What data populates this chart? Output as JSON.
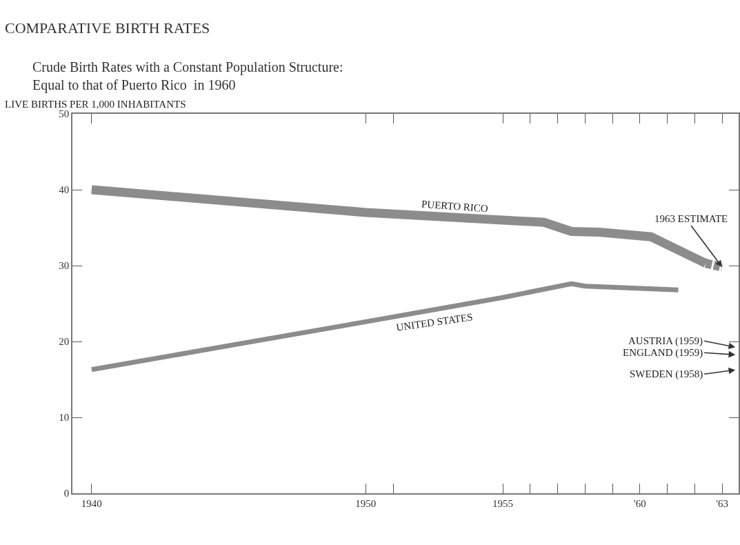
{
  "chart_data": {
    "type": "line",
    "title": "COMPARATIVE BIRTH RATES",
    "subtitle": "Crude Birth Rates with a Constant Population Structure:\nEqual to that of Puerto Rico  in 1960",
    "ylabel": "LIVE BIRTHS PER 1,000 INHABITANTS",
    "series": [
      {
        "name": "PUERTO RICO",
        "color": "#8c8c8c",
        "x": [
          1940,
          1950,
          1956.5,
          1957.5,
          1958.5,
          1960.4,
          1962.4
        ],
        "values": [
          40.0,
          37.0,
          35.7,
          34.5,
          34.4,
          33.8,
          30.3
        ]
      },
      {
        "color": "#8c8c8c",
        "x": [
          1962.4,
          1963
        ],
        "values": [
          30.3,
          29.8
        ],
        "line_style": "dashed"
      },
      {
        "name": "UNITED STATES",
        "color": "#8c8c8c",
        "x": [
          1940,
          1950,
          1955,
          1957.5,
          1958,
          1960,
          1961.4
        ],
        "values": [
          16.3,
          22.6,
          25.8,
          27.6,
          27.3,
          27.0,
          26.8
        ]
      }
    ],
    "annotations": [
      {
        "text": "1963 ESTIMATE",
        "x": 1963,
        "y": 29.8
      },
      "AUSTRIA (1959)",
      "ENGLAND (1959)",
      "SWEDEN (1958)"
    ],
    "xlim": [
      1939.3,
      1963.6
    ],
    "xticks": [
      1940,
      1950,
      {
        "value": 1951,
        "label": null
      },
      1955,
      {
        "value": 1956,
        "label": null
      },
      {
        "value": 1957,
        "label": null
      },
      {
        "value": 1958,
        "label": null
      },
      {
        "value": 1959,
        "label": null
      },
      {
        "value": 1960,
        "label": "'60"
      },
      {
        "value": 1961,
        "label": null
      },
      {
        "value": 1962,
        "label": null
      },
      {
        "value": 1963,
        "label": "'63"
      }
    ],
    "ylim": [
      0,
      50
    ],
    "yticks": [
      0,
      10,
      20,
      30,
      40,
      50
    ],
    "grid": false,
    "legend": false,
    "marker": "none",
    "line_style": "solid"
  }
}
